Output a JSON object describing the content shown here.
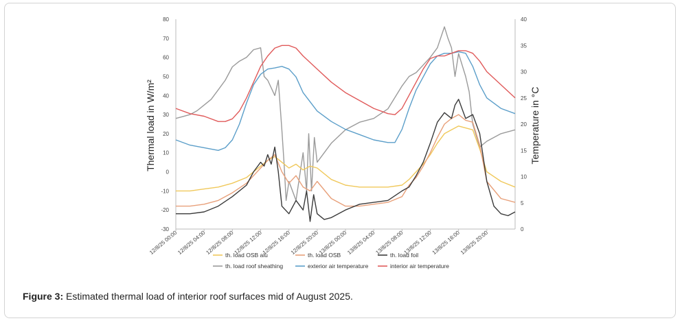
{
  "figure": {
    "caption_label": "Figure 3:",
    "caption_text": " Estimated thermal load of interior roof surfaces mid of August 2025."
  },
  "chart_data": {
    "type": "line",
    "title": "",
    "ylabel": "Thermal load in W/m²",
    "y2label": "Temperature in °C",
    "ylim": [
      -30,
      80
    ],
    "y2lim": [
      0,
      40
    ],
    "yticks": [
      -30,
      -20,
      -10,
      0,
      10,
      20,
      30,
      40,
      50,
      60,
      70,
      80
    ],
    "y2ticks": [
      0,
      5,
      10,
      15,
      20,
      25,
      30,
      35,
      40
    ],
    "xlim": [
      0,
      48
    ],
    "x_tick_positions": [
      0,
      4,
      8,
      12,
      16,
      20,
      24,
      28,
      32,
      36,
      40,
      44
    ],
    "x_tick_labels": [
      "12/8/25 00:00",
      "12/8/25 04:00",
      "12/8/25 08:00",
      "12/8/25 12:00",
      "12/8/25 16:00",
      "12/8/25 20:00",
      "13/8/25 00:00",
      "13/8/25 04:00",
      "13/8/25 08:00",
      "13/8/25 12:00",
      "13/8/25 16:00",
      "13/8/25 20:00"
    ],
    "y_tick_labels": [
      "-30",
      "-20",
      "-10",
      "0",
      "10",
      "20",
      "30",
      "40",
      "50",
      "60",
      "70",
      "80"
    ],
    "y2_tick_labels": [
      "0",
      "5",
      "10",
      "15",
      "20",
      "25",
      "30",
      "35",
      "40"
    ],
    "x_unit": "hours since 12/8/25 00:00",
    "series": [
      {
        "name": "th. load OSB alu",
        "axis": "left",
        "color": "#f0c85a",
        "x": [
          0,
          2,
          4,
          6,
          8,
          10,
          12,
          13,
          14,
          15,
          16,
          17,
          18,
          19,
          20,
          22,
          24,
          26,
          28,
          30,
          32,
          33,
          34,
          35,
          36,
          37,
          38,
          39,
          40,
          41,
          42,
          43,
          44,
          46,
          48
        ],
        "y": [
          -10,
          -10,
          -9,
          -8,
          -6,
          -3,
          3,
          6,
          8,
          5,
          2,
          4,
          1,
          3,
          2,
          -4,
          -7,
          -8,
          -8,
          -8,
          -7,
          -4,
          0,
          4,
          9,
          15,
          20,
          22,
          24,
          23,
          22,
          12,
          0,
          -5,
          -8
        ]
      },
      {
        "name": "th. load OSB",
        "axis": "left",
        "color": "#e8a07a",
        "x": [
          0,
          2,
          4,
          6,
          8,
          10,
          12,
          13,
          14,
          15,
          16,
          17,
          18,
          19,
          20,
          22,
          24,
          26,
          28,
          30,
          32,
          33,
          34,
          35,
          36,
          37,
          38,
          39,
          40,
          41,
          42,
          43,
          44,
          46,
          48
        ],
        "y": [
          -18,
          -18,
          -17,
          -15,
          -11,
          -6,
          2,
          6,
          9,
          0,
          -6,
          -2,
          -8,
          -10,
          -5,
          -14,
          -18,
          -18,
          -17,
          -16,
          -13,
          -7,
          -3,
          3,
          10,
          18,
          25,
          28,
          30,
          27,
          26,
          14,
          -5,
          -14,
          -16
        ]
      },
      {
        "name": "th. load foil",
        "axis": "left",
        "color": "#3a3a3a",
        "x": [
          0,
          2,
          4,
          6,
          8,
          10,
          11,
          12,
          12.5,
          13,
          13.5,
          14,
          14.5,
          15,
          16,
          17,
          18,
          18.5,
          19,
          19.5,
          20,
          21,
          22,
          24,
          26,
          28,
          30,
          32,
          33,
          34,
          35,
          36,
          37,
          38,
          39,
          39.5,
          40,
          40.5,
          41,
          42,
          43,
          44,
          45,
          46,
          47,
          48
        ],
        "y": [
          -22,
          -22,
          -21,
          -18,
          -13,
          -7,
          0,
          5,
          3,
          9,
          4,
          13,
          0,
          -18,
          -22,
          -15,
          -20,
          -10,
          -26,
          -12,
          -22,
          -25,
          -24,
          -20,
          -17,
          -16,
          -15,
          -10,
          -8,
          -2,
          5,
          15,
          26,
          31,
          28,
          35,
          38,
          33,
          28,
          30,
          20,
          -5,
          -18,
          -22,
          -23,
          -21
        ]
      },
      {
        "name": "th. load roof sheathing",
        "axis": "left",
        "color": "#9a9a9a",
        "x": [
          0,
          1,
          2,
          3,
          4,
          5,
          6,
          7,
          8,
          9,
          10,
          11,
          12,
          12.5,
          13,
          14,
          14.5,
          15,
          15.3,
          15.6,
          16,
          17,
          18,
          18.5,
          18.8,
          19.2,
          19.6,
          20,
          21,
          22,
          24,
          26,
          28,
          30,
          32,
          33,
          34,
          35,
          36,
          37,
          38,
          38.5,
          39,
          39.5,
          40,
          41,
          41.5,
          42,
          43,
          44,
          46,
          48
        ],
        "y": [
          28,
          29,
          30,
          32,
          35,
          38,
          43,
          48,
          55,
          58,
          60,
          64,
          65,
          50,
          48,
          40,
          48,
          22,
          5,
          -15,
          -5,
          -15,
          10,
          -10,
          20,
          -10,
          18,
          5,
          10,
          15,
          22,
          26,
          28,
          33,
          45,
          50,
          52,
          56,
          60,
          65,
          76,
          70,
          65,
          50,
          62,
          50,
          42,
          25,
          13,
          16,
          20,
          22
        ]
      },
      {
        "name": "exterior air temperature",
        "axis": "right",
        "color": "#5b9ec9",
        "x": [
          0,
          2,
          4,
          6,
          7,
          8,
          9,
          10,
          11,
          12,
          13,
          14,
          15,
          16,
          17,
          18,
          20,
          22,
          24,
          26,
          28,
          30,
          31,
          32,
          33,
          34,
          35,
          36,
          37,
          38,
          39,
          40,
          41,
          42,
          43,
          44,
          46,
          48
        ],
        "y": [
          17,
          16,
          15.5,
          15,
          15.5,
          17,
          20,
          24,
          27.5,
          29.5,
          30.5,
          30.7,
          31,
          30.5,
          29,
          26,
          22.5,
          20.5,
          19,
          18,
          17,
          16.5,
          16.5,
          19,
          23,
          26.5,
          29,
          31.5,
          33,
          33.5,
          33.5,
          33.8,
          33.5,
          31,
          27.5,
          25,
          23,
          22
        ]
      },
      {
        "name": "interior air temperature",
        "axis": "right",
        "color": "#e05a5a",
        "x": [
          0,
          2,
          4,
          6,
          7,
          8,
          9,
          10,
          11,
          12,
          13,
          14,
          15,
          16,
          17,
          18,
          20,
          22,
          24,
          26,
          28,
          30,
          31,
          32,
          33,
          34,
          35,
          36,
          37,
          38,
          39,
          40,
          41,
          42,
          43,
          44,
          46,
          48
        ],
        "y": [
          23,
          22,
          21.5,
          20.5,
          20.5,
          21,
          22.5,
          25,
          28,
          31,
          33,
          34.5,
          35,
          35,
          34.5,
          33,
          30.5,
          28,
          26,
          24.5,
          23,
          22,
          21.8,
          23,
          25.5,
          28,
          30.5,
          32.5,
          33,
          33,
          33.5,
          34,
          34,
          33.5,
          32,
          30,
          27.5,
          25
        ]
      }
    ],
    "legend": [
      {
        "label": "th. load OSB alu",
        "color": "#f0c85a"
      },
      {
        "label": "th. load OSB",
        "color": "#e8a07a"
      },
      {
        "label": "th. load foil",
        "color": "#3a3a3a"
      },
      {
        "label": "th. load roof sheathing",
        "color": "#9a9a9a"
      },
      {
        "label": "exterior air temperature",
        "color": "#5b9ec9"
      },
      {
        "label": "interior air temperature",
        "color": "#e05a5a"
      }
    ],
    "legend_position": "bottom",
    "grid": false
  }
}
